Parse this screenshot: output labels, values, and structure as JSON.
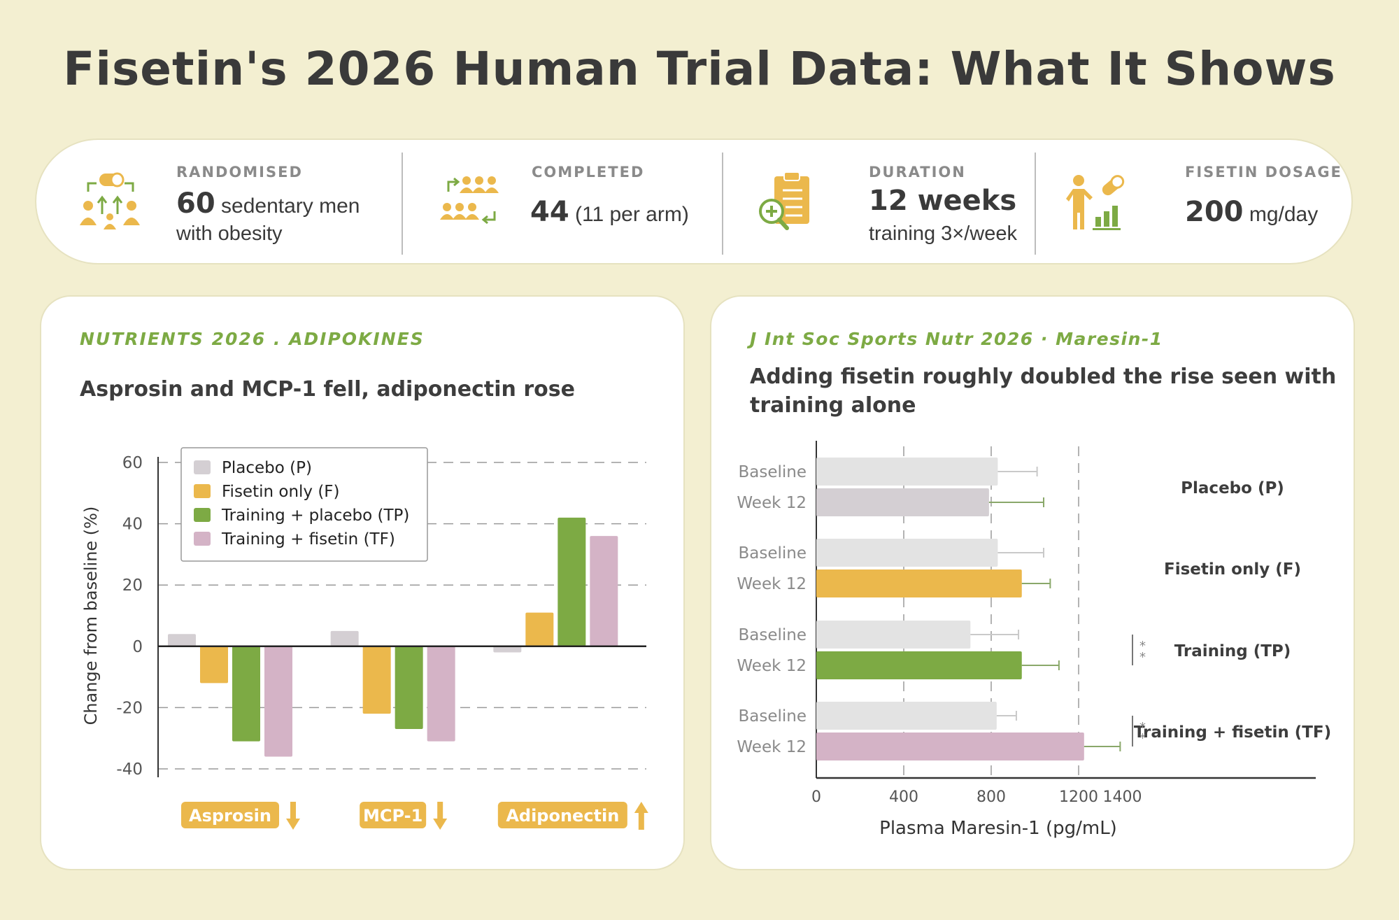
{
  "title": "Fisetin's 2026 Human Trial Data: What It Shows",
  "stats": [
    {
      "label": "RANDOMISED",
      "value": "60",
      "unit": "sedentary men",
      "sub": "with obesity",
      "icon": "people-pill-icon"
    },
    {
      "label": "COMPLETED",
      "value": "44",
      "unit": "(11 per arm)",
      "sub": "",
      "icon": "group-arrows-icon"
    },
    {
      "label": "DURATION",
      "value": "12 weeks",
      "unit": "",
      "sub": "training 3×/week",
      "icon": "clipboard-search-icon"
    },
    {
      "label": "FISETIN DOSAGE",
      "value": "200",
      "unit": "mg/day",
      "sub": "",
      "icon": "person-pill-chart-icon"
    }
  ],
  "panel_left": {
    "kicker": "NUTRIENTS 2026 . ADIPOKINES",
    "headline": "Asprosin and MCP-1 fell, adiponectin rose"
  },
  "panel_right": {
    "kicker": "J Int Soc Sports Nutr 2026 · Maresin-1",
    "headline_line1": "Adding fisetin roughly doubled the rise seen with",
    "headline_line2": "training alone"
  },
  "colors": {
    "placebo": "#d4cfd3",
    "fisetin": "#ebb84c",
    "training_placebo": "#7daa44",
    "training_fisetin": "#d4b3c6",
    "baseline": "#e3e3e3",
    "accent_green": "#7daa44",
    "accent_yellow": "#ebb84c"
  },
  "chart_data": [
    {
      "type": "bar",
      "categories": [
        "Asprosin",
        "MCP-1",
        "Adiponectin"
      ],
      "category_direction": [
        "down",
        "down",
        "up"
      ],
      "series": [
        {
          "name": "Placebo (P)",
          "values": [
            4,
            5,
            -2
          ]
        },
        {
          "name": "Fisetin only (F)",
          "values": [
            -12,
            -22,
            11
          ]
        },
        {
          "name": "Training + placebo (TP)",
          "values": [
            -31,
            -27,
            42
          ]
        },
        {
          "name": "Training + fisetin (TF)",
          "values": [
            -36,
            -31,
            36
          ]
        }
      ],
      "ylabel": "Change from baseline (%)",
      "ylim": [
        -40,
        60
      ],
      "yticks": [
        60,
        40,
        20,
        0,
        -20,
        -40
      ],
      "grid": true,
      "legend": "top-left"
    },
    {
      "type": "bar",
      "orientation": "horizontal",
      "xlabel": "Plasma Maresin-1 (pg/mL)",
      "xlim": [
        0,
        1430
      ],
      "xticks": [
        0,
        400,
        800,
        1200,
        1400
      ],
      "groups": [
        {
          "name": "Placebo (P)",
          "significance": "",
          "bars": [
            {
              "label": "Baseline",
              "value": 830,
              "error": 180
            },
            {
              "label": "Week 12",
              "value": 790,
              "error": 250
            }
          ]
        },
        {
          "name": "Fisetin only (F)",
          "significance": "",
          "bars": [
            {
              "label": "Baseline",
              "value": 830,
              "error": 210
            },
            {
              "label": "Week 12",
              "value": 940,
              "error": 130
            }
          ]
        },
        {
          "name": "Training (TP)",
          "significance": "**",
          "bars": [
            {
              "label": "Baseline",
              "value": 705,
              "error": 220
            },
            {
              "label": "Week 12",
              "value": 940,
              "error": 170
            }
          ]
        },
        {
          "name": "Training + fisetin (TF)",
          "significance": "**",
          "bars": [
            {
              "label": "Baseline",
              "value": 825,
              "error": 90
            },
            {
              "label": "Week 12",
              "value": 1225,
              "error": 165
            }
          ]
        }
      ],
      "grid": true
    }
  ]
}
